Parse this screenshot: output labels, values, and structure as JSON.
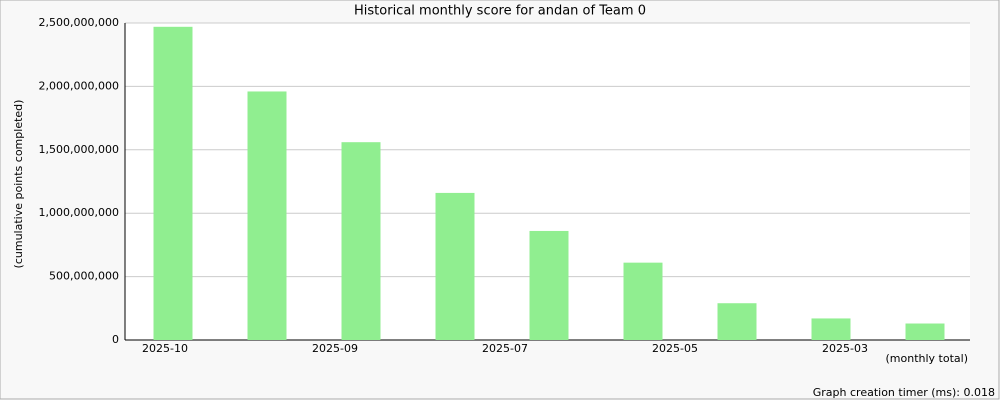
{
  "chart_data": {
    "type": "bar",
    "title": "Historical monthly score for andan of Team 0",
    "y_label": "(cumulative points completed)",
    "x_label": "(monthly total)",
    "footer": "Graph creation timer (ms): 0.018",
    "categories": [
      "2025-10",
      null,
      "2025-09",
      null,
      "2025-07",
      null,
      "2025-05",
      null,
      "2025-03"
    ],
    "values": [
      2470000000,
      1960000000,
      1560000000,
      1160000000,
      860000000,
      610000000,
      290000000,
      170000000,
      130000000
    ],
    "color": "#90ee90",
    "ylim": [
      0,
      2500000000
    ],
    "yticks": [
      0,
      {
        "value": 500000000,
        "label": "500,000,000"
      },
      {
        "value": 1000000000,
        "label": "1,000,000,000"
      },
      {
        "value": 1500000000,
        "label": "1,500,000,000"
      },
      {
        "value": 2000000000,
        "label": "2,000,000,000"
      },
      {
        "value": 2500000000,
        "label": "2,500,000,000"
      }
    ],
    "grid": true
  }
}
